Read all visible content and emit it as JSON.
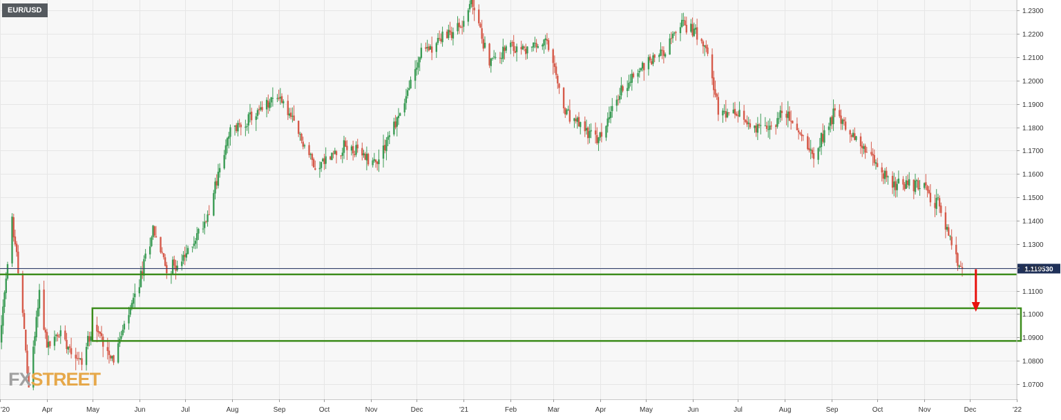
{
  "symbol": "EUR/USD",
  "watermark": {
    "part1": "FX",
    "part2": "STREET"
  },
  "colors": {
    "up": "#3a9b54",
    "down": "#d65a4a",
    "zone": "#3c8c1c",
    "arrow": "#e8120c",
    "price_line": "#2b3a67",
    "price_label_bg": "#1f3058",
    "plot_bg": "#f7f7f7",
    "grid": "#e6e6e6"
  },
  "chart_data": {
    "type": "candlestick",
    "title": "EUR/USD",
    "timeframe": "daily",
    "x_ticks": [
      "'20",
      "Apr",
      "May",
      "Jun",
      "Jul",
      "Aug",
      "Sep",
      "Oct",
      "Nov",
      "Dec",
      "'21",
      "Feb",
      "Mar",
      "Apr",
      "May",
      "Jun",
      "Jul",
      "Aug",
      "Sep",
      "Oct",
      "Nov",
      "Dec",
      "'22"
    ],
    "y_ticks": [
      "1.0700",
      "1.0800",
      "1.0900",
      "1.1000",
      "1.1100",
      "1.1200",
      "1.1300",
      "1.1400",
      "1.1500",
      "1.1600",
      "1.1700",
      "1.1800",
      "1.1900",
      "1.2000",
      "1.2100",
      "1.2200",
      "1.2300"
    ],
    "ylim": [
      1.0635,
      1.2345
    ],
    "x_range": [
      "2020-03-01",
      "2022-01-01"
    ],
    "price_path": [
      [
        "2020-03-01",
        1.088
      ],
      [
        "2020-03-09",
        1.14
      ],
      [
        "2020-03-14",
        1.115
      ],
      [
        "2020-03-20",
        1.068
      ],
      [
        "2020-03-27",
        1.11
      ],
      [
        "2020-04-01",
        1.086
      ],
      [
        "2020-04-10",
        1.092
      ],
      [
        "2020-04-24",
        1.079
      ],
      [
        "2020-05-01",
        1.096
      ],
      [
        "2020-05-15",
        1.081
      ],
      [
        "2020-05-31",
        1.111
      ],
      [
        "2020-06-10",
        1.137
      ],
      [
        "2020-06-19",
        1.119
      ],
      [
        "2020-06-30",
        1.123
      ],
      [
        "2020-07-15",
        1.141
      ],
      [
        "2020-07-31",
        1.178
      ],
      [
        "2020-08-20",
        1.187
      ],
      [
        "2020-09-01",
        1.194
      ],
      [
        "2020-09-25",
        1.163
      ],
      [
        "2020-10-15",
        1.172
      ],
      [
        "2020-11-04",
        1.165
      ],
      [
        "2020-11-20",
        1.186
      ],
      [
        "2020-12-04",
        1.212
      ],
      [
        "2020-12-31",
        1.224
      ],
      [
        "2021-01-06",
        1.234
      ],
      [
        "2021-01-18",
        1.208
      ],
      [
        "2021-01-31",
        1.214
      ],
      [
        "2021-02-10",
        1.213
      ],
      [
        "2021-02-25",
        1.216
      ],
      [
        "2021-03-09",
        1.186
      ],
      [
        "2021-03-31",
        1.174
      ],
      [
        "2021-04-15",
        1.196
      ],
      [
        "2021-04-30",
        1.207
      ],
      [
        "2021-05-15",
        1.214
      ],
      [
        "2021-05-25",
        1.225
      ],
      [
        "2021-06-10",
        1.217
      ],
      [
        "2021-06-18",
        1.186
      ],
      [
        "2021-06-30",
        1.185
      ],
      [
        "2021-07-20",
        1.178
      ],
      [
        "2021-07-31",
        1.187
      ],
      [
        "2021-08-20",
        1.169
      ],
      [
        "2021-09-03",
        1.187
      ],
      [
        "2021-09-20",
        1.172
      ],
      [
        "2021-10-12",
        1.155
      ],
      [
        "2021-10-29",
        1.156
      ],
      [
        "2021-11-10",
        1.147
      ],
      [
        "2021-11-24",
        1.12
      ],
      [
        "2021-11-26",
        1.1195
      ]
    ],
    "current_price": "1.119530",
    "support_line": 1.117,
    "zone": {
      "start": "2020-05-01",
      "end": "2022-01-01",
      "low": 1.0885,
      "high": 1.1025
    },
    "arrow": {
      "at": "2021-12-05",
      "from": 1.1195,
      "to": 1.101
    }
  }
}
